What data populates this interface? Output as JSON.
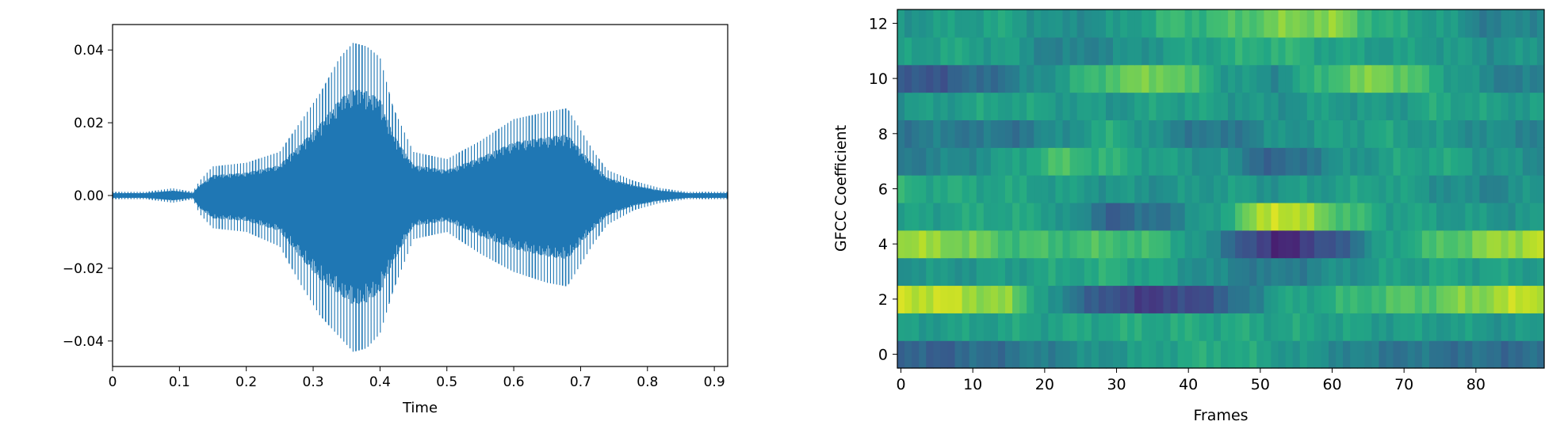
{
  "chart_data": [
    {
      "type": "line",
      "title": "",
      "xlabel": "Time",
      "ylabel": "",
      "xlim": [
        0,
        0.92
      ],
      "ylim": [
        -0.047,
        0.047
      ],
      "xticks": [
        0,
        0.1,
        0.2,
        0.3,
        0.4,
        0.5,
        0.6,
        0.7,
        0.8,
        0.9
      ],
      "xtick_labels": [
        "0",
        "0.1",
        "0.2",
        "0.3",
        "0.4",
        "0.5",
        "0.6",
        "0.7",
        "0.8",
        "0.9"
      ],
      "yticks": [
        -0.04,
        -0.02,
        0.0,
        0.02,
        0.04
      ],
      "ytick_labels": [
        "−0.04",
        "−0.02",
        "0.00",
        "0.02",
        "0.04"
      ],
      "grid": false,
      "color": "#1f77b4",
      "series": [
        {
          "x": [
            0.0,
            0.05,
            0.09,
            0.12,
            0.13,
            0.15,
            0.2,
            0.25,
            0.28,
            0.31,
            0.34,
            0.36,
            0.38,
            0.4,
            0.42,
            0.45,
            0.5,
            0.55,
            0.6,
            0.65,
            0.68,
            0.7,
            0.72,
            0.74,
            0.78,
            0.82,
            0.86,
            0.92
          ],
          "y_max": [
            0.001,
            0.001,
            0.002,
            0.001,
            0.004,
            0.008,
            0.009,
            0.012,
            0.02,
            0.028,
            0.038,
            0.042,
            0.041,
            0.038,
            0.024,
            0.012,
            0.01,
            0.015,
            0.021,
            0.023,
            0.024,
            0.018,
            0.012,
            0.007,
            0.004,
            0.002,
            0.001,
            0.001
          ],
          "y_min": [
            -0.001,
            -0.001,
            -0.002,
            -0.001,
            -0.005,
            -0.009,
            -0.01,
            -0.014,
            -0.024,
            -0.033,
            -0.039,
            -0.043,
            -0.042,
            -0.038,
            -0.026,
            -0.012,
            -0.01,
            -0.016,
            -0.021,
            -0.024,
            -0.025,
            -0.019,
            -0.013,
            -0.008,
            -0.004,
            -0.002,
            -0.001,
            -0.001
          ]
        }
      ]
    },
    {
      "type": "heatmap",
      "title": "",
      "xlabel": "Frames",
      "ylabel": "GFCC Coefficient",
      "xlim": [
        -0.5,
        89.5
      ],
      "ylim": [
        -0.5,
        12.5
      ],
      "xticks": [
        0,
        10,
        20,
        30,
        40,
        50,
        60,
        70,
        80
      ],
      "yticks": [
        0,
        2,
        4,
        6,
        8,
        10,
        12
      ],
      "colormap": "viridis",
      "num_frames": 90,
      "num_coefficients": 13,
      "values": [
        [
          0.3,
          0.32,
          0.38,
          0.45,
          0.52,
          0.58,
          0.62,
          0.55,
          0.48,
          0.4,
          0.38,
          0.36,
          0.35
        ],
        [
          0.55,
          0.55,
          0.57,
          0.58,
          0.6,
          0.6,
          0.6,
          0.58,
          0.57,
          0.55,
          0.55,
          0.53,
          0.52
        ],
        [
          0.92,
          0.9,
          0.8,
          0.45,
          0.22,
          0.18,
          0.3,
          0.55,
          0.62,
          0.7,
          0.75,
          0.85,
          0.92
        ],
        [
          0.52,
          0.52,
          0.55,
          0.58,
          0.62,
          0.55,
          0.45,
          0.4,
          0.48,
          0.55,
          0.58,
          0.57,
          0.55
        ],
        [
          0.85,
          0.82,
          0.7,
          0.68,
          0.7,
          0.65,
          0.4,
          0.1,
          0.25,
          0.55,
          0.7,
          0.82,
          0.9
        ],
        [
          0.55,
          0.58,
          0.6,
          0.55,
          0.3,
          0.4,
          0.6,
          0.95,
          0.75,
          0.58,
          0.55,
          0.52,
          0.52
        ],
        [
          0.62,
          0.6,
          0.58,
          0.55,
          0.52,
          0.5,
          0.55,
          0.52,
          0.55,
          0.58,
          0.5,
          0.45,
          0.52
        ],
        [
          0.42,
          0.45,
          0.55,
          0.7,
          0.62,
          0.55,
          0.5,
          0.3,
          0.48,
          0.55,
          0.6,
          0.52,
          0.48
        ],
        [
          0.4,
          0.42,
          0.38,
          0.48,
          0.62,
          0.45,
          0.38,
          0.5,
          0.55,
          0.58,
          0.52,
          0.48,
          0.45
        ],
        [
          0.52,
          0.55,
          0.58,
          0.55,
          0.52,
          0.58,
          0.55,
          0.5,
          0.55,
          0.52,
          0.6,
          0.55,
          0.55
        ],
        [
          0.25,
          0.3,
          0.4,
          0.55,
          0.75,
          0.8,
          0.55,
          0.48,
          0.7,
          0.82,
          0.6,
          0.45,
          0.4
        ],
        [
          0.55,
          0.58,
          0.55,
          0.42,
          0.48,
          0.55,
          0.6,
          0.65,
          0.58,
          0.55,
          0.55,
          0.5,
          0.52
        ],
        [
          0.52,
          0.55,
          0.58,
          0.48,
          0.52,
          0.65,
          0.68,
          0.78,
          0.82,
          0.62,
          0.55,
          0.42,
          0.48
        ]
      ],
      "value_frames": [
        0,
        7,
        15,
        22,
        30,
        37,
        45,
        52,
        60,
        67,
        75,
        82,
        89
      ],
      "grid": false
    }
  ]
}
